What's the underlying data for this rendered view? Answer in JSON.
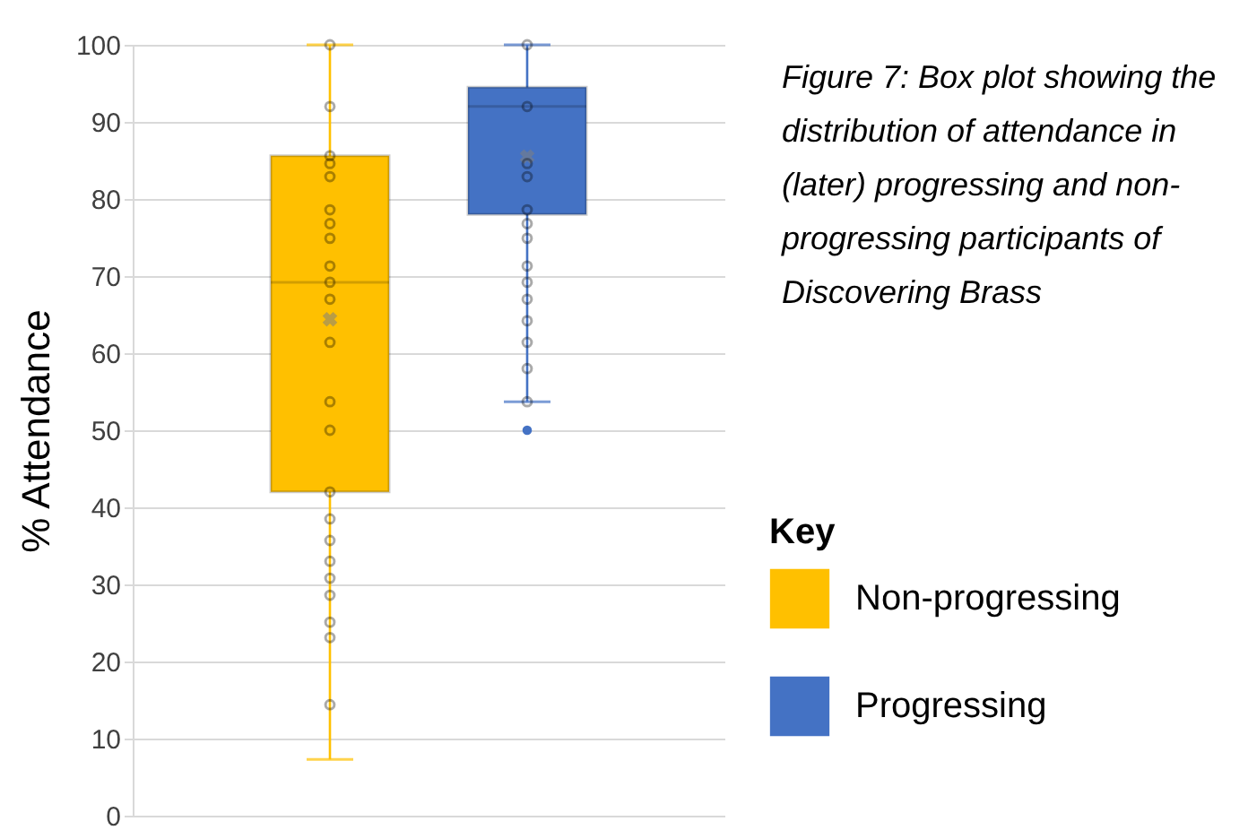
{
  "chart_data": {
    "type": "box",
    "title": "Figure 7: Box plot showing the distribution of attendance in (later) progressing and non-progressing participants of Discovering Brass",
    "ylabel": "% Attendance",
    "legend_title": "Key",
    "legend": "right",
    "categories": [
      null
    ],
    "series": [
      {
        "name": "Non-progressing",
        "type": "box",
        "color": "#ffc000",
        "boxes": [
          {
            "low": 7.3,
            "q1": 42,
            "median": 69.2,
            "q3": 85.6,
            "high": 100,
            "mean": 64.4,
            "outliers": [
              100,
              92,
              85.6,
              84.6,
              82.9,
              78.6,
              76.8,
              74.9,
              71.3,
              69.2,
              67,
              61.4,
              53.7,
              50,
              42,
              38.5,
              35.7,
              33,
              30.8,
              28.6,
              25.1,
              23.1,
              14.4
            ]
          }
        ]
      },
      {
        "name": "Progressing",
        "type": "box",
        "color": "#4472c4",
        "boxes": [
          {
            "low": 53.7,
            "q1": 78,
            "median": 92,
            "q3": 94.5,
            "high": 100,
            "mean": 85.5,
            "outliers": [
              100,
              92,
              84.6,
              82.9,
              78.6,
              76.8,
              74.9,
              71.3,
              69.2,
              67,
              64.2,
              61.4,
              58,
              53.7,
              50
            ]
          }
        ]
      }
    ],
    "ylim": [
      0,
      100
    ],
    "yticks": [
      0,
      10,
      20,
      30,
      40,
      50,
      60,
      70,
      80,
      90,
      100
    ],
    "grid": "y",
    "tick_labels": "y",
    "marker": "circle"
  }
}
